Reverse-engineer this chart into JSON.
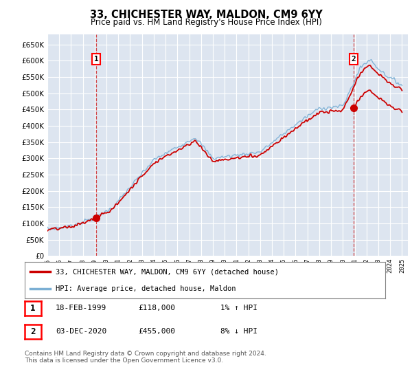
{
  "title": "33, CHICHESTER WAY, MALDON, CM9 6YY",
  "subtitle": "Price paid vs. HM Land Registry's House Price Index (HPI)",
  "plot_bg_color": "#dde5f0",
  "grid_color": "#ffffff",
  "ylim": [
    0,
    680000
  ],
  "yticks": [
    0,
    50000,
    100000,
    150000,
    200000,
    250000,
    300000,
    350000,
    400000,
    450000,
    500000,
    550000,
    600000,
    650000
  ],
  "xlim_start": 1995.0,
  "xlim_end": 2025.5,
  "sale1_date": 1999.12,
  "sale1_price": 118000,
  "sale2_date": 2020.92,
  "sale2_price": 455000,
  "hpi_color": "#7bafd4",
  "price_color": "#cc0000",
  "legend_line1": "33, CHICHESTER WAY, MALDON, CM9 6YY (detached house)",
  "legend_line2": "HPI: Average price, detached house, Maldon",
  "table_row1": [
    "1",
    "18-FEB-1999",
    "£118,000",
    "1% ↑ HPI"
  ],
  "table_row2": [
    "2",
    "03-DEC-2020",
    "£455,000",
    "8% ↓ HPI"
  ],
  "footer": "Contains HM Land Registry data © Crown copyright and database right 2024.\nThis data is licensed under the Open Government Licence v3.0."
}
